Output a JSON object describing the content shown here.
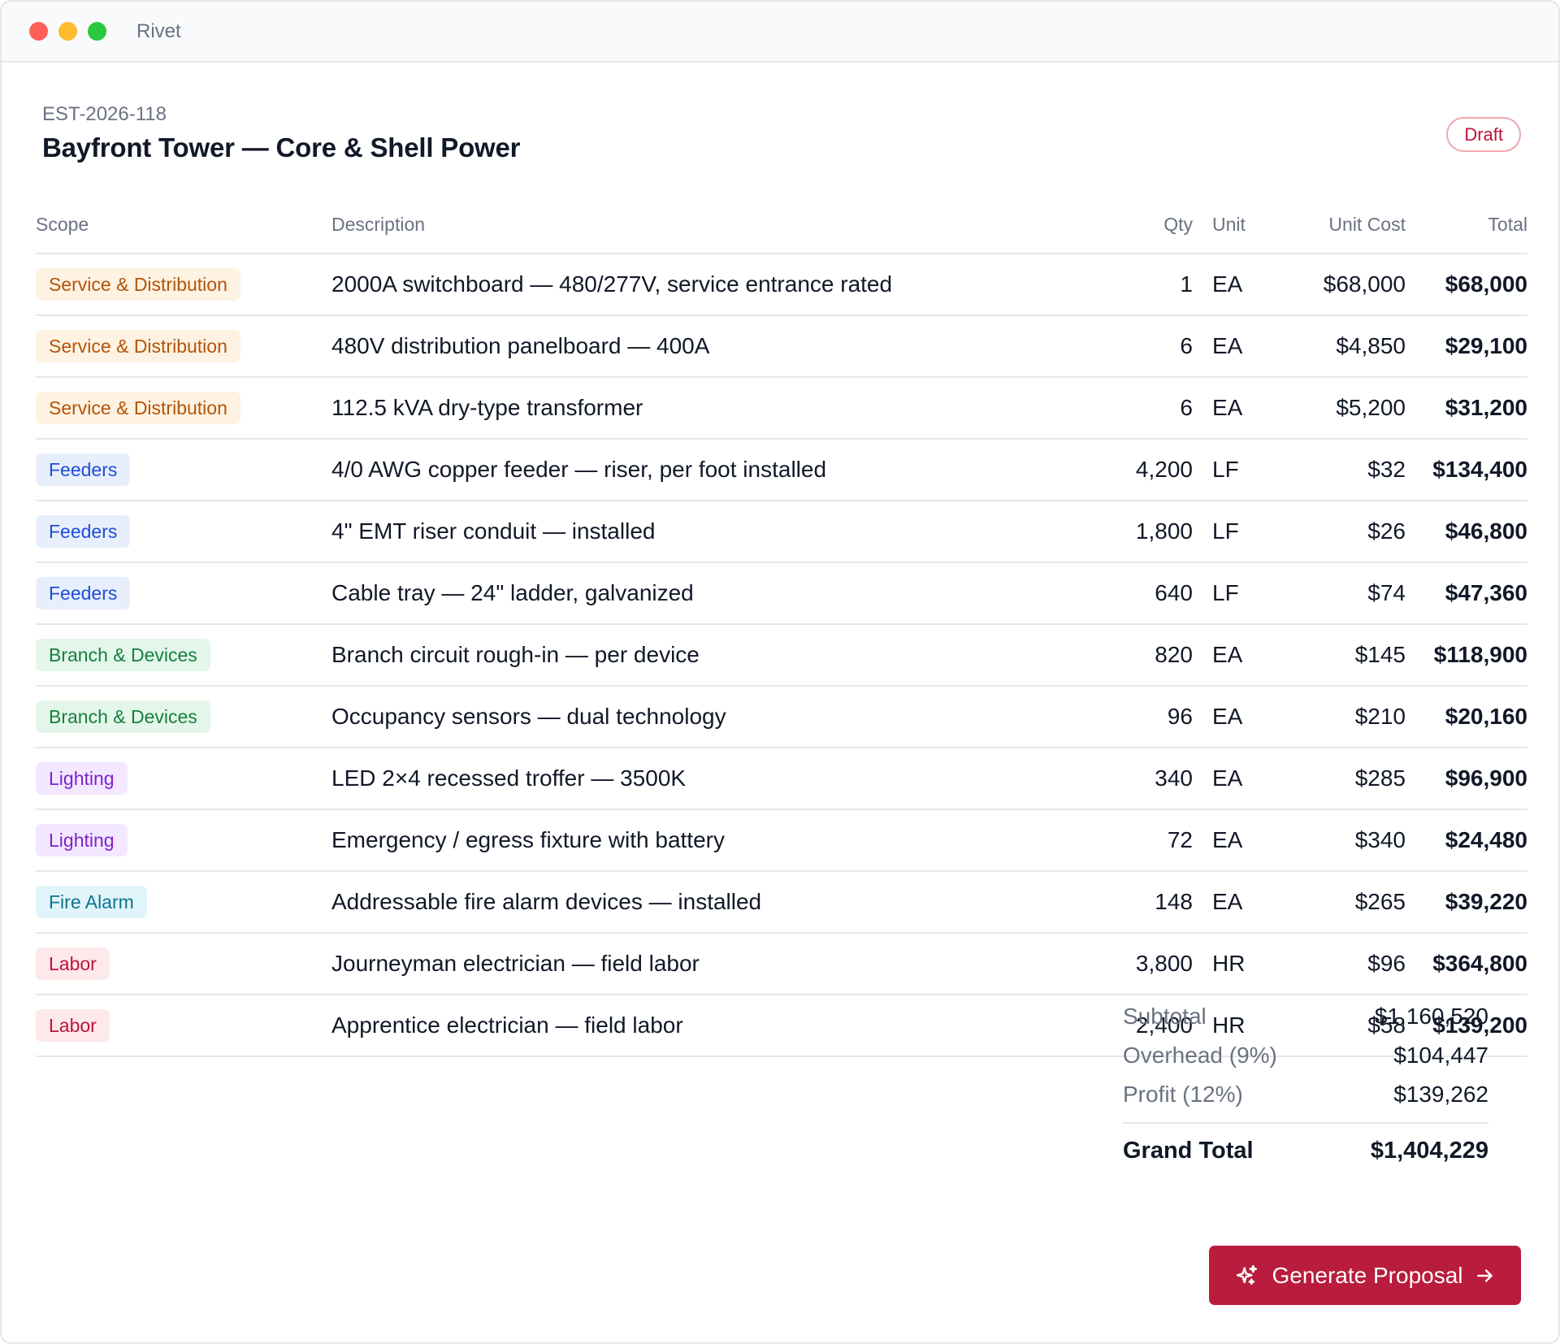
{
  "window": {
    "title": "Rivet"
  },
  "estimate": {
    "id": "EST-2026-118",
    "title": "Bayfront Tower — Core & Shell Power",
    "status": "Draft"
  },
  "table": {
    "columns": {
      "scope": "Scope",
      "description": "Description",
      "qty": "Qty",
      "unit": "Unit",
      "unit_cost": "Unit Cost",
      "total": "Total"
    },
    "rows": [
      {
        "scope": "Service & Distribution",
        "scope_key": "service",
        "description": "2000A switchboard — 480/277V, service entrance rated",
        "qty": "1",
        "unit": "EA",
        "unit_cost": "$68,000",
        "total": "$68,000"
      },
      {
        "scope": "Service & Distribution",
        "scope_key": "service",
        "description": "480V distribution panelboard — 400A",
        "qty": "6",
        "unit": "EA",
        "unit_cost": "$4,850",
        "total": "$29,100"
      },
      {
        "scope": "Service & Distribution",
        "scope_key": "service",
        "description": "112.5 kVA dry-type transformer",
        "qty": "6",
        "unit": "EA",
        "unit_cost": "$5,200",
        "total": "$31,200"
      },
      {
        "scope": "Feeders",
        "scope_key": "feeders",
        "description": "4/0 AWG copper feeder — riser, per foot installed",
        "qty": "4,200",
        "unit": "LF",
        "unit_cost": "$32",
        "total": "$134,400"
      },
      {
        "scope": "Feeders",
        "scope_key": "feeders",
        "description": "4\" EMT riser conduit — installed",
        "qty": "1,800",
        "unit": "LF",
        "unit_cost": "$26",
        "total": "$46,800"
      },
      {
        "scope": "Feeders",
        "scope_key": "feeders",
        "description": "Cable tray — 24\" ladder, galvanized",
        "qty": "640",
        "unit": "LF",
        "unit_cost": "$74",
        "total": "$47,360"
      },
      {
        "scope": "Branch & Devices",
        "scope_key": "branch",
        "description": "Branch circuit rough-in — per device",
        "qty": "820",
        "unit": "EA",
        "unit_cost": "$145",
        "total": "$118,900"
      },
      {
        "scope": "Branch & Devices",
        "scope_key": "branch",
        "description": "Occupancy sensors — dual technology",
        "qty": "96",
        "unit": "EA",
        "unit_cost": "$210",
        "total": "$20,160"
      },
      {
        "scope": "Lighting",
        "scope_key": "lighting",
        "description": "LED 2×4 recessed troffer — 3500K",
        "qty": "340",
        "unit": "EA",
        "unit_cost": "$285",
        "total": "$96,900"
      },
      {
        "scope": "Lighting",
        "scope_key": "lighting",
        "description": "Emergency / egress fixture with battery",
        "qty": "72",
        "unit": "EA",
        "unit_cost": "$340",
        "total": "$24,480"
      },
      {
        "scope": "Fire Alarm",
        "scope_key": "fire",
        "description": "Addressable fire alarm devices — installed",
        "qty": "148",
        "unit": "EA",
        "unit_cost": "$265",
        "total": "$39,220"
      },
      {
        "scope": "Labor",
        "scope_key": "labor",
        "description": "Journeyman electrician — field labor",
        "qty": "3,800",
        "unit": "HR",
        "unit_cost": "$96",
        "total": "$364,800"
      },
      {
        "scope": "Labor",
        "scope_key": "labor",
        "description": "Apprentice electrician — field labor",
        "qty": "2,400",
        "unit": "HR",
        "unit_cost": "$58",
        "total": "$139,200"
      }
    ]
  },
  "summary": {
    "subtotal_label": "Subtotal",
    "subtotal": "$1,160,520",
    "overhead_label": "Overhead (9%)",
    "overhead": "$104,447",
    "profit_label": "Profit (12%)",
    "profit": "$139,262",
    "grand_total_label": "Grand Total",
    "grand_total": "$1,404,229"
  },
  "actions": {
    "generate_label": "Generate Proposal"
  },
  "icons": {
    "generate": "sparkles-icon",
    "arrow": "arrow-right-icon"
  },
  "colors": {
    "accent": "#b91c3c",
    "draft": "#be123c"
  }
}
